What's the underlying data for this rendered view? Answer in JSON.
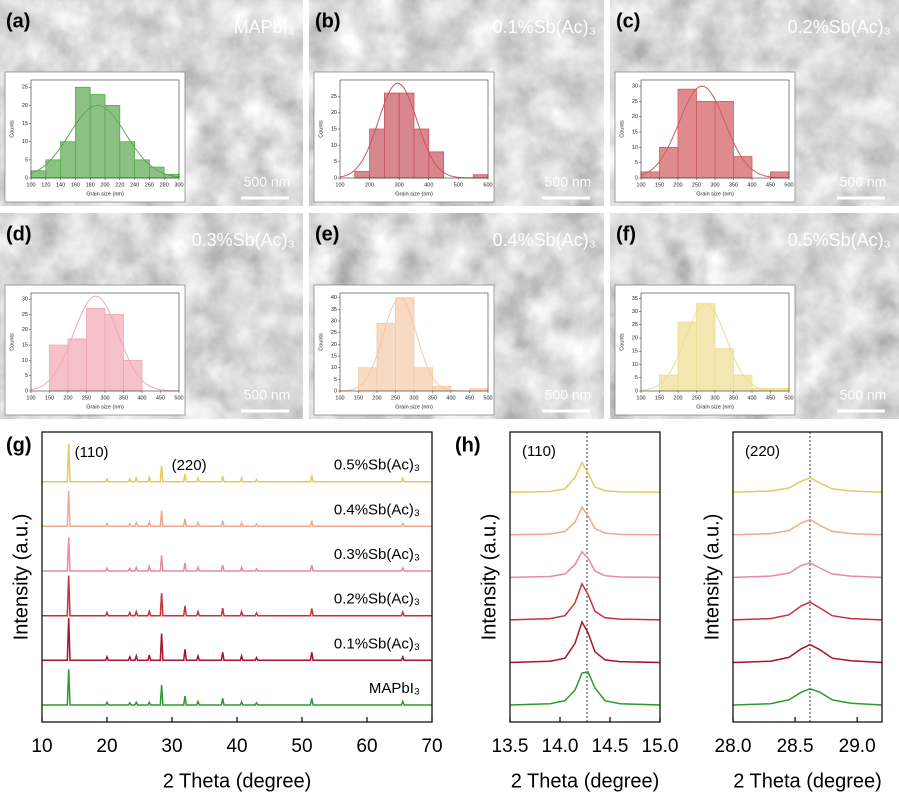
{
  "chart_data": [
    {
      "type": "histogram",
      "panel": "(a)",
      "label": "MAPbI₃",
      "scale_bar": "500 nm",
      "xlabel": "Grain size (nm)",
      "ylabel": "Counts",
      "color": "#5aa84f",
      "bins": [
        100,
        120,
        140,
        160,
        180,
        200,
        220,
        240,
        260,
        280,
        300
      ],
      "values": [
        2,
        5,
        10,
        25,
        23,
        20,
        10,
        5,
        3,
        1
      ],
      "fit": {
        "mean": 190,
        "sd": 38,
        "peak": 20
      },
      "xlim": [
        100,
        300
      ],
      "xticks": [
        100,
        120,
        140,
        160,
        180,
        200,
        220,
        240,
        260,
        280,
        300
      ],
      "ylim": [
        0,
        27
      ],
      "yticks": [
        0,
        5,
        10,
        15,
        20,
        25
      ]
    },
    {
      "type": "histogram",
      "panel": "(b)",
      "label": "0.1%Sb(Ac)₃",
      "scale_bar": "500 nm",
      "xlabel": "Grain size (nm)",
      "ylabel": "Counts",
      "color": "#c9545e",
      "bins": [
        150,
        200,
        250,
        300,
        350,
        400,
        450,
        500,
        550,
        600
      ],
      "values": [
        2,
        15,
        26,
        26,
        15,
        8,
        0,
        0,
        1
      ],
      "fit": {
        "mean": 295,
        "sd": 65,
        "peak": 29
      },
      "xlim": [
        100,
        600
      ],
      "xticks": [
        100,
        200,
        300,
        400,
        500,
        600
      ],
      "ylim": [
        0,
        30
      ],
      "yticks": [
        0,
        5,
        10,
        15,
        20,
        25
      ]
    },
    {
      "type": "histogram",
      "panel": "(c)",
      "label": "0.2%Sb(Ac)₃",
      "scale_bar": "500 nm",
      "xlabel": "Grain size (nm)",
      "ylabel": "Counts",
      "color": "#d25a5e",
      "bins": [
        100,
        150,
        200,
        250,
        300,
        350,
        400,
        450,
        500
      ],
      "values": [
        2,
        10,
        29,
        25,
        25,
        7,
        0,
        2
      ],
      "fit": {
        "mean": 265,
        "sd": 62,
        "peak": 30
      },
      "xlim": [
        100,
        500
      ],
      "xticks": [
        100,
        150,
        200,
        250,
        300,
        350,
        400,
        450,
        500
      ],
      "ylim": [
        0,
        32
      ],
      "yticks": [
        0,
        5,
        10,
        15,
        20,
        25,
        30
      ]
    },
    {
      "type": "histogram",
      "panel": "(d)",
      "label": "0.3%Sb(Ac)₃",
      "scale_bar": "500 nm",
      "xlabel": "Grain size (nm)",
      "ylabel": "Counts",
      "color": "#f2a8b4",
      "bins": [
        150,
        200,
        250,
        300,
        350,
        400
      ],
      "values": [
        15,
        17,
        27,
        25,
        10
      ],
      "fit": {
        "mean": 275,
        "sd": 60,
        "peak": 31
      },
      "xlim": [
        100,
        500
      ],
      "xticks": [
        100,
        150,
        200,
        250,
        300,
        350,
        400,
        450,
        500
      ],
      "ylim": [
        0,
        32
      ],
      "yticks": [
        0,
        5,
        10,
        15,
        20,
        25,
        30
      ]
    },
    {
      "type": "histogram",
      "panel": "(e)",
      "label": "0.4%Sb(Ac)₃",
      "scale_bar": "500 nm",
      "xlabel": "Grain size (nm)",
      "ylabel": "Counts",
      "color": "#f5c9a8",
      "bins": [
        150,
        200,
        250,
        300,
        350,
        400,
        450,
        500
      ],
      "values": [
        10,
        29,
        40,
        10,
        2,
        0,
        1
      ],
      "fit": {
        "mean": 262,
        "sd": 45,
        "peak": 40
      },
      "xlim": [
        100,
        500
      ],
      "xticks": [
        100,
        150,
        200,
        250,
        300,
        350,
        400,
        450,
        500
      ],
      "ylim": [
        0,
        42
      ],
      "yticks": [
        0,
        5,
        10,
        15,
        20,
        25,
        30,
        35,
        40
      ]
    },
    {
      "type": "histogram",
      "panel": "(f)",
      "label": "0.5%Sb(Ac)₃",
      "scale_bar": "500 nm",
      "xlabel": "Grain size (nm)",
      "ylabel": "Counts",
      "color": "#f0dc90",
      "bins": [
        150,
        200,
        250,
        300,
        350,
        400,
        450,
        500
      ],
      "values": [
        6,
        26,
        33,
        16,
        6,
        1,
        1
      ],
      "fit": {
        "mean": 275,
        "sd": 55,
        "peak": 33
      },
      "xlim": [
        100,
        500
      ],
      "xticks": [
        100,
        150,
        200,
        250,
        300,
        350,
        400,
        450,
        500
      ],
      "ylim": [
        0,
        37
      ],
      "yticks": [
        0,
        5,
        10,
        15,
        20,
        25,
        30,
        35
      ]
    },
    {
      "type": "line",
      "panel": "(g)",
      "xlabel": "2 Theta (degree)",
      "ylabel": "Intensity (a.u.)",
      "annotations": [
        "(110)",
        "(220)"
      ],
      "x": [
        10,
        13.9,
        14.1,
        14.3,
        19.8,
        20,
        20.2,
        23.3,
        23.5,
        23.7,
        24.3,
        24.5,
        24.7,
        26.3,
        26.5,
        26.7,
        28.2,
        28.4,
        28.6,
        31.8,
        32,
        32.2,
        33.8,
        34,
        34.2,
        37.6,
        37.8,
        38,
        40.5,
        40.7,
        40.9,
        42.8,
        43,
        43.2,
        51.3,
        51.5,
        51.7,
        65.3,
        65.5,
        65.7,
        70
      ],
      "series": [
        {
          "name": "MAPbI₃",
          "color": "#2e9a2e",
          "values": [
            0,
            0,
            0.8,
            0,
            0,
            0.06,
            0,
            0,
            0.05,
            0,
            0,
            0.06,
            0,
            0,
            0.06,
            0,
            0,
            0.45,
            0,
            0,
            0.2,
            0,
            0,
            0.08,
            0,
            0,
            0.15,
            0,
            0,
            0.07,
            0,
            0,
            0.05,
            0,
            0,
            0.15,
            0,
            0,
            0.08,
            0,
            0
          ]
        },
        {
          "name": "0.1%Sb(Ac)₃",
          "color": "#a8122a",
          "values": [
            0,
            0,
            0.95,
            0,
            0,
            0.08,
            0,
            0,
            0.08,
            0,
            0,
            0.1,
            0,
            0,
            0.12,
            0,
            0,
            0.6,
            0,
            0,
            0.25,
            0,
            0,
            0.1,
            0,
            0,
            0.18,
            0,
            0,
            0.1,
            0,
            0,
            0.06,
            0,
            0,
            0.18,
            0,
            0,
            0.08,
            0,
            0
          ]
        },
        {
          "name": "0.2%Sb(Ac)₃",
          "color": "#c8313a",
          "values": [
            0,
            0,
            0.9,
            0,
            0,
            0.07,
            0,
            0,
            0.07,
            0,
            0,
            0.09,
            0,
            0,
            0.1,
            0,
            0,
            0.5,
            0,
            0,
            0.22,
            0,
            0,
            0.09,
            0,
            0,
            0.17,
            0,
            0,
            0.09,
            0,
            0,
            0.06,
            0,
            0,
            0.16,
            0,
            0,
            0.08,
            0,
            0
          ]
        },
        {
          "name": "0.3%Sb(Ac)₃",
          "color": "#e889a0",
          "values": [
            0,
            0,
            0.75,
            0,
            0,
            0.06,
            0,
            0,
            0.06,
            0,
            0,
            0.08,
            0,
            0,
            0.1,
            0,
            0,
            0.35,
            0,
            0,
            0.18,
            0,
            0,
            0.08,
            0,
            0,
            0.13,
            0,
            0,
            0.08,
            0,
            0,
            0.05,
            0,
            0,
            0.13,
            0,
            0,
            0.07,
            0,
            0
          ]
        },
        {
          "name": "0.4%Sb(Ac)₃",
          "color": "#f0a890",
          "values": [
            0,
            0,
            0.8,
            0,
            0,
            0.06,
            0,
            0,
            0.06,
            0,
            0,
            0.08,
            0,
            0,
            0.1,
            0,
            0,
            0.35,
            0,
            0,
            0.17,
            0,
            0,
            0.08,
            0,
            0,
            0.13,
            0,
            0,
            0.08,
            0,
            0,
            0.05,
            0,
            0,
            0.13,
            0,
            0,
            0.07,
            0,
            0
          ]
        },
        {
          "name": "0.5%Sb(Ac)₃",
          "color": "#e8c860",
          "values": [
            0,
            0,
            0.85,
            0,
            0,
            0.06,
            0,
            0,
            0.06,
            0,
            0,
            0.08,
            0,
            0,
            0.1,
            0,
            0,
            0.35,
            0,
            0,
            0.17,
            0,
            0,
            0.08,
            0,
            0,
            0.13,
            0,
            0,
            0.08,
            0,
            0,
            0.05,
            0,
            0,
            0.14,
            0,
            0,
            0.07,
            0,
            0
          ]
        }
      ],
      "xlim": [
        10,
        70
      ],
      "xticks": [
        10,
        20,
        30,
        40,
        50,
        60,
        70
      ],
      "ylim": [
        0,
        6
      ]
    },
    {
      "type": "line",
      "panel": "(h)",
      "title": "(110)",
      "xlabel": "2 Theta (degree)",
      "ylabel": "Intensity (a.u.)",
      "reference_x": 14.27,
      "x": [
        13.5,
        13.9,
        14.05,
        14.15,
        14.22,
        14.28,
        14.35,
        14.45,
        14.6,
        15.0
      ],
      "series": [
        {
          "color": "#2e9a2e",
          "values": [
            0,
            0.03,
            0.1,
            0.35,
            0.75,
            0.78,
            0.4,
            0.1,
            0.03,
            0
          ]
        },
        {
          "color": "#a8122a",
          "values": [
            0,
            0.03,
            0.1,
            0.45,
            0.95,
            0.7,
            0.25,
            0.06,
            0.02,
            0
          ]
        },
        {
          "color": "#c8313a",
          "values": [
            0,
            0.03,
            0.1,
            0.4,
            0.85,
            0.6,
            0.2,
            0.05,
            0.02,
            0
          ]
        },
        {
          "color": "#e889a0",
          "values": [
            0,
            0.02,
            0.08,
            0.3,
            0.6,
            0.45,
            0.15,
            0.04,
            0.01,
            0
          ]
        },
        {
          "color": "#f0a890",
          "values": [
            0,
            0.02,
            0.08,
            0.3,
            0.65,
            0.45,
            0.15,
            0.04,
            0.01,
            0
          ]
        },
        {
          "color": "#e8c860",
          "values": [
            0,
            0.02,
            0.08,
            0.35,
            0.7,
            0.45,
            0.12,
            0.04,
            0.01,
            0
          ]
        }
      ],
      "xlim": [
        13.5,
        15.0
      ],
      "xticks": [
        13.5,
        {
          "value": 14,
          "label": "14.0"
        },
        14.5,
        {
          "value": 15,
          "label": "15.0"
        }
      ],
      "ylim": [
        0,
        6.3
      ]
    },
    {
      "type": "line",
      "title": "(220)",
      "xlabel": "2 Theta (degree)",
      "ylabel": "Intensity (a.u.)",
      "reference_x": 28.62,
      "x": [
        28.0,
        28.3,
        28.45,
        28.55,
        28.62,
        28.7,
        28.8,
        28.95,
        29.2
      ],
      "series": [
        {
          "color": "#2e9a2e",
          "values": [
            0,
            0.03,
            0.12,
            0.3,
            0.38,
            0.3,
            0.12,
            0.04,
            0
          ]
        },
        {
          "color": "#a8122a",
          "values": [
            0,
            0.03,
            0.12,
            0.32,
            0.42,
            0.3,
            0.1,
            0.04,
            0
          ]
        },
        {
          "color": "#c8313a",
          "values": [
            0,
            0.03,
            0.12,
            0.33,
            0.42,
            0.28,
            0.1,
            0.03,
            0
          ]
        },
        {
          "color": "#e889a0",
          "values": [
            0,
            0.03,
            0.1,
            0.28,
            0.34,
            0.22,
            0.08,
            0.03,
            0
          ]
        },
        {
          "color": "#f0a890",
          "values": [
            0,
            0.03,
            0.1,
            0.28,
            0.36,
            0.22,
            0.08,
            0.03,
            0
          ]
        },
        {
          "color": "#e8c860",
          "values": [
            0,
            0.03,
            0.1,
            0.26,
            0.34,
            0.22,
            0.08,
            0.03,
            0
          ]
        }
      ],
      "xlim": [
        28.0,
        29.2
      ],
      "xticks": [
        {
          "value": 28,
          "label": "28.0"
        },
        28.5,
        {
          "value": 29,
          "label": "29.0"
        }
      ],
      "ylim": [
        0,
        6.3
      ]
    }
  ]
}
